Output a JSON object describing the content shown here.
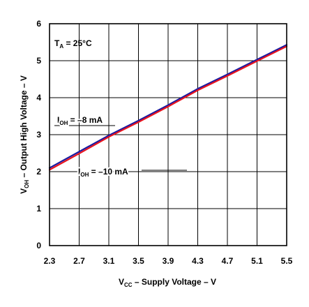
{
  "chart_data": {
    "type": "line",
    "x_ticks": [
      "2.3",
      "2.7",
      "3.1",
      "3.5",
      "3.9",
      "4.3",
      "4.7",
      "5.1",
      "5.5"
    ],
    "y_ticks": [
      "0",
      "1",
      "2",
      "3",
      "4",
      "5",
      "6"
    ],
    "xlim": [
      2.3,
      5.5
    ],
    "ylim": [
      0,
      6
    ],
    "grid": true,
    "xlabel": {
      "main": "V",
      "sub": "CC",
      "rest": " – Supply Voltage – V"
    },
    "ylabel": {
      "main": "V",
      "sub": "OH",
      "rest": " – Output High Voltage – V"
    },
    "condition": {
      "main": "T",
      "sub": "A",
      "rest": " = 25°C"
    },
    "series": [
      {
        "name": {
          "main": "I",
          "sub": "OH",
          "rest": " = –8 mA"
        },
        "color": "#1a1aa0",
        "x": [
          2.3,
          2.7,
          3.1,
          3.5,
          3.9,
          4.3,
          4.7,
          5.1,
          5.5
        ],
        "y": [
          2.1,
          2.54,
          2.98,
          3.38,
          3.8,
          4.24,
          4.63,
          5.03,
          5.43
        ]
      },
      {
        "name": {
          "main": "I",
          "sub": "OH",
          "rest": " = –10 mA"
        },
        "color": "#e8141e",
        "x": [
          2.3,
          2.7,
          3.1,
          3.5,
          3.9,
          4.3,
          4.7,
          5.1,
          5.5
        ],
        "y": [
          2.05,
          2.49,
          2.94,
          3.34,
          3.76,
          4.2,
          4.59,
          4.99,
          5.39
        ]
      }
    ]
  }
}
